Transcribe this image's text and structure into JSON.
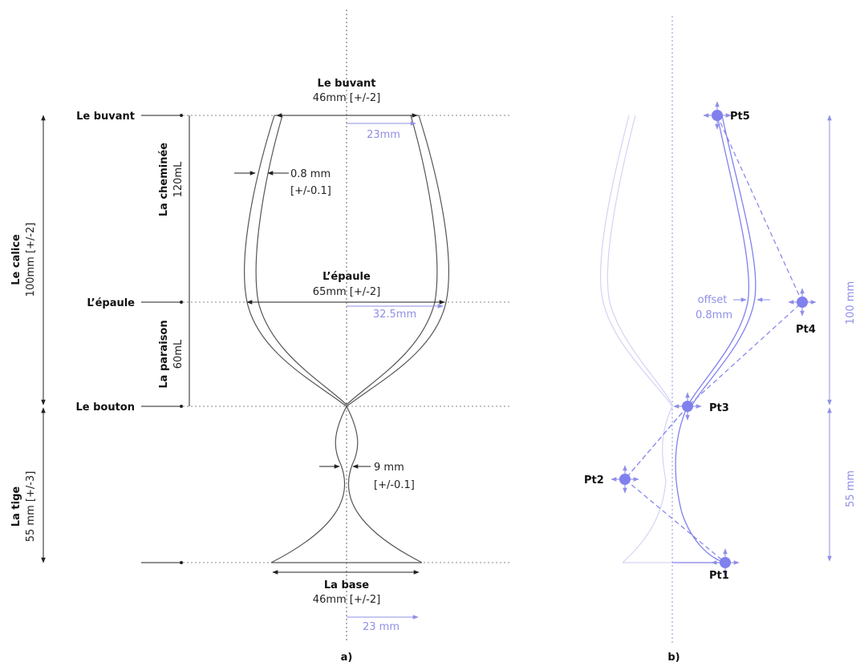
{
  "panel_a": {
    "caption": "a)",
    "left_labels": {
      "buvant": "Le buvant",
      "epaule": "L’épaule",
      "bouton": "Le bouton"
    },
    "calice": {
      "title": "Le calice",
      "value": "100mm [+/-2]"
    },
    "tige": {
      "title": "La tige",
      "value": "55 mm [+/-3]"
    },
    "cheminee": {
      "title": "La cheminée",
      "value": "120mL"
    },
    "paraison": {
      "title": "La paraison",
      "value": "60mL"
    },
    "top": {
      "title": "Le buvant",
      "value": "46mm [+/-2]",
      "half": "23mm"
    },
    "shoulder": {
      "title": "L’épaule",
      "value": "65mm [+/-2]",
      "half": "32.5mm"
    },
    "base": {
      "title": "La base",
      "value": "46mm [+/-2]",
      "half": "23 mm"
    },
    "wall": {
      "line1": "0.8 mm",
      "line2": "[+/-0.1]"
    },
    "stem": {
      "line1": "9 mm",
      "line2": "[+/-0.1]"
    }
  },
  "panel_b": {
    "caption": "b)",
    "points": [
      "Pt5",
      "Pt4",
      "Pt3",
      "Pt2",
      "Pt1"
    ],
    "offset": {
      "line1": "offset",
      "line2": "0.8mm"
    },
    "dim_upper": "100 mm",
    "dim_lower": "55 mm",
    "accent_color": "#8080ee"
  }
}
